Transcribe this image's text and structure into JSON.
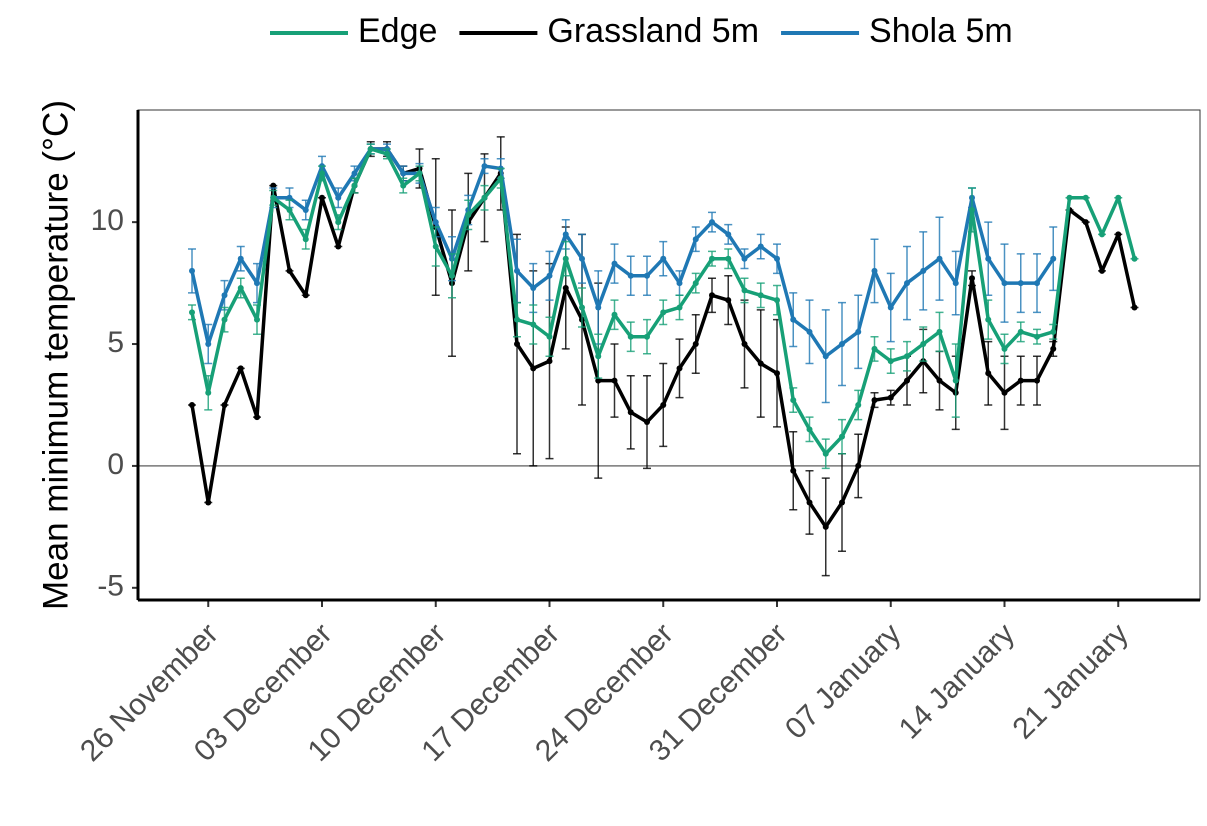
{
  "chart_data": {
    "type": "line",
    "y_label": "Mean minimum temperature (°C)",
    "categories": [
      null,
      "26 November",
      null,
      null,
      null,
      null,
      null,
      null,
      "03 December",
      null,
      null,
      null,
      null,
      null,
      null,
      "10 December",
      null,
      null,
      null,
      null,
      null,
      null,
      "17 December",
      null,
      null,
      null,
      null,
      null,
      null,
      "24 December",
      null,
      null,
      null,
      null,
      null,
      null,
      "31 December",
      null,
      null,
      null,
      null,
      null,
      null,
      "07 January",
      null,
      null,
      null,
      null,
      null,
      null,
      "14 January",
      null,
      null,
      null,
      null,
      null,
      null,
      "21 January",
      null
    ],
    "series": [
      {
        "name": "Grassland 5m",
        "color": "#000000",
        "values": [
          2.5,
          -1.5,
          2.5,
          4,
          2,
          11.5,
          8,
          7,
          11,
          9,
          11.5,
          13,
          13,
          12,
          12.2,
          9.8,
          7.5,
          10,
          11,
          12,
          5,
          4,
          4.3,
          7.3,
          6,
          3.5,
          3.5,
          2.2,
          1.8,
          2.5,
          4,
          5,
          7,
          6.8,
          5,
          4.2,
          3.8,
          -0.2,
          -1.5,
          -2.5,
          -1.5,
          0,
          2.7,
          2.8,
          3.5,
          4.3,
          3.5,
          3,
          7.7,
          3.8,
          3,
          3.5,
          3.5,
          4.8,
          10.5,
          10,
          8,
          9.5,
          6.5
        ],
        "errors": [
          0,
          0,
          0,
          0,
          0,
          0,
          0,
          0,
          0,
          0,
          0.3,
          0.3,
          0.3,
          0.3,
          0.8,
          2.8,
          3,
          2,
          1.8,
          1.5,
          4.5,
          4,
          4,
          2.5,
          3.5,
          4,
          1.5,
          1.5,
          1.9,
          1.7,
          1.2,
          1.2,
          0.7,
          1,
          1.8,
          2.2,
          2.2,
          1.6,
          1.3,
          2,
          2,
          1.3,
          0.3,
          0.3,
          1,
          1.3,
          1.2,
          1.5,
          0.3,
          1.3,
          1.5,
          1,
          1,
          0.3,
          0,
          0,
          0,
          0,
          0
        ]
      },
      {
        "name": "Shola 5m",
        "color": "#1f78b4",
        "values": [
          8,
          5,
          7,
          8.5,
          7.5,
          11,
          11,
          10.5,
          12.3,
          11,
          12,
          13,
          13,
          12,
          12,
          10,
          8.5,
          10.5,
          12.3,
          12.2,
          8,
          7.3,
          7.8,
          9.5,
          8.5,
          6.5,
          8.3,
          7.8,
          7.8,
          8.5,
          7.5,
          9.3,
          10,
          9.5,
          8.5,
          9,
          8.5,
          6,
          5.5,
          4.5,
          5,
          5.5,
          8,
          6.5,
          7.5,
          8,
          8.5,
          7.5,
          11,
          8.5,
          7.5,
          7.5,
          7.5,
          8.5,
          null,
          null,
          null,
          null,
          null
        ],
        "errors": [
          0.9,
          0.8,
          0.6,
          0.5,
          0.8,
          0.4,
          0.4,
          0.4,
          0.4,
          0.4,
          0.3,
          0.2,
          0.2,
          0.3,
          0.4,
          0.6,
          0.9,
          0.6,
          0.3,
          0.4,
          1.3,
          1,
          1,
          0.6,
          1,
          1.5,
          0.8,
          0.8,
          0.8,
          0.7,
          0.5,
          0.5,
          0.4,
          0.4,
          0.4,
          0.5,
          0.6,
          1.1,
          1.3,
          1.9,
          1.7,
          1.5,
          1.3,
          1.4,
          1.5,
          1.6,
          1.7,
          1.3,
          0.4,
          1.5,
          1.6,
          1.2,
          1.2,
          1.3,
          null,
          null,
          null,
          null,
          null
        ]
      },
      {
        "name": "Edge",
        "color": "#17a077",
        "values": [
          6.3,
          3,
          6,
          7.3,
          6,
          11,
          10.5,
          9.3,
          12,
          10,
          11.5,
          13,
          12.8,
          11.5,
          12,
          9,
          7.8,
          10.3,
          11,
          11.8,
          6,
          5.8,
          5.3,
          8.5,
          6.5,
          4.5,
          6.2,
          5.3,
          5.3,
          6.3,
          6.5,
          7.5,
          8.5,
          8.5,
          7.2,
          7,
          6.8,
          2.7,
          1.5,
          0.5,
          1.2,
          2.5,
          4.8,
          4.3,
          4.5,
          5,
          5.5,
          3.5,
          10.5,
          6,
          4.8,
          5.5,
          5.3,
          5.5,
          11,
          11,
          9.5,
          11,
          8.5
        ],
        "errors": [
          0.3,
          0.7,
          0.5,
          0.4,
          0.6,
          0.3,
          0.4,
          0.4,
          0.3,
          0.3,
          0.3,
          0.2,
          0.2,
          0.3,
          0.3,
          0.8,
          0.9,
          0.6,
          0.5,
          0.4,
          0.7,
          0.8,
          0.8,
          0.7,
          0.8,
          0.9,
          0.6,
          0.6,
          0.7,
          0.5,
          0.5,
          0.4,
          0.3,
          0.4,
          0.5,
          0.5,
          0.6,
          0.5,
          0.5,
          0.6,
          0.7,
          0.6,
          0.5,
          0.5,
          0.6,
          0.7,
          0.8,
          1.5,
          0.9,
          0.8,
          0.6,
          0.4,
          0.3,
          0.3,
          0,
          0,
          0,
          0,
          0
        ]
      }
    ],
    "legend_order": [
      "Edge",
      "Grassland 5m",
      "Shola 5m"
    ],
    "ylim": [
      -5.5,
      14.6
    ],
    "yticks": [
      -5,
      0,
      5,
      10
    ],
    "zero_line": true
  }
}
